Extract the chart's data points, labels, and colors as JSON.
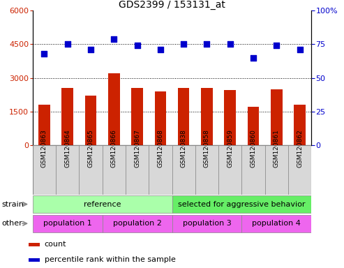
{
  "title": "GDS2399 / 153131_at",
  "samples": [
    "GSM120863",
    "GSM120864",
    "GSM120865",
    "GSM120866",
    "GSM120867",
    "GSM120868",
    "GSM120838",
    "GSM120858",
    "GSM120859",
    "GSM120860",
    "GSM120861",
    "GSM120862"
  ],
  "counts": [
    1800,
    2550,
    2200,
    3200,
    2550,
    2400,
    2550,
    2550,
    2450,
    1700,
    2500,
    1800
  ],
  "percentiles": [
    68,
    75,
    71,
    79,
    74,
    71,
    75,
    75,
    75,
    65,
    74,
    71
  ],
  "left_ylim": [
    0,
    6000
  ],
  "left_yticks": [
    0,
    1500,
    3000,
    4500,
    6000
  ],
  "right_ylim": [
    0,
    100
  ],
  "right_yticks": [
    0,
    25,
    50,
    75,
    100
  ],
  "bar_color": "#cc2200",
  "dot_color": "#0000cc",
  "bar_width": 0.5,
  "dot_size": 35,
  "dot_marker": "s",
  "grid_color": "black",
  "strain_labels": [
    {
      "text": "reference",
      "start": 0,
      "end": 5,
      "color": "#aaffaa"
    },
    {
      "text": "selected for aggressive behavior",
      "start": 6,
      "end": 11,
      "color": "#66ee66"
    }
  ],
  "other_labels": [
    {
      "text": "population 1",
      "start": 0,
      "end": 2,
      "color": "#ee66ee"
    },
    {
      "text": "population 2",
      "start": 3,
      "end": 5,
      "color": "#ee66ee"
    },
    {
      "text": "population 3",
      "start": 6,
      "end": 8,
      "color": "#ee66ee"
    },
    {
      "text": "population 4",
      "start": 9,
      "end": 11,
      "color": "#ee66ee"
    }
  ],
  "strain_row_label": "strain",
  "other_row_label": "other",
  "legend_count_color": "#cc2200",
  "legend_pct_color": "#0000cc",
  "legend_count_label": "count",
  "legend_pct_label": "percentile rank within the sample",
  "tick_label_color_left": "#cc2200",
  "tick_label_color_right": "#0000cc",
  "title_fontsize": 10,
  "tick_fontsize": 8,
  "label_fontsize": 8,
  "legend_fontsize": 8
}
